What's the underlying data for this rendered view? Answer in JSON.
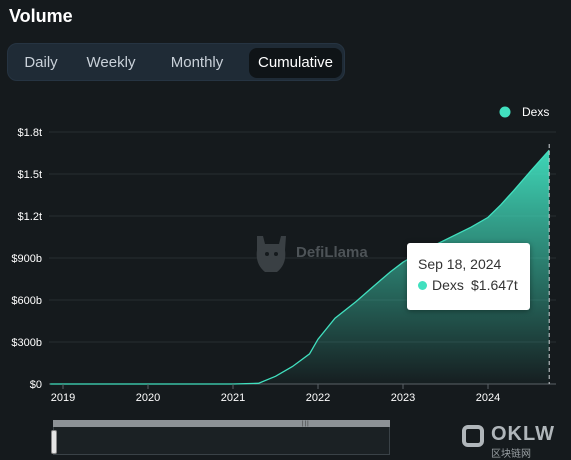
{
  "page_title": "Volume",
  "tabs": [
    {
      "label": "Daily",
      "active": false
    },
    {
      "label": "Weekly",
      "active": false
    },
    {
      "label": "Monthly",
      "active": false
    },
    {
      "label": "Cumulative",
      "active": true
    }
  ],
  "brand_watermark": "DefiLlama",
  "corner_watermark": {
    "text": "OKLW",
    "subtext": "区块链网"
  },
  "tooltip": {
    "date": "Sep 18, 2024",
    "series": "Dexs",
    "value": "$1.647t"
  },
  "colors": {
    "series": "#41e0bf",
    "background": "#151a1d",
    "axis_text": "#ffffff"
  },
  "chart_data": {
    "type": "area",
    "title": "",
    "legend": {
      "entries": [
        "Dexs"
      ],
      "position": "top-right"
    },
    "x_tick_labels": [
      "2019",
      "2020",
      "2021",
      "2022",
      "2023",
      "2024"
    ],
    "y_tick_labels": [
      "$0",
      "$300b",
      "$600b",
      "$900b",
      "$1.2t",
      "$1.5t",
      "$1.8t"
    ],
    "ylim": [
      0,
      1800
    ],
    "y_unit": "billions USD",
    "xlim": [
      2018.85,
      2024.75
    ],
    "grid": "horizontal",
    "series": [
      {
        "name": "Dexs",
        "x": [
          2018.85,
          2020.0,
          2021.0,
          2021.3,
          2021.5,
          2021.7,
          2021.9,
          2022.0,
          2022.2,
          2022.45,
          2022.6,
          2022.85,
          2023.0,
          2023.2,
          2023.4,
          2023.6,
          2023.8,
          2024.0,
          2024.15,
          2024.3,
          2024.5,
          2024.72
        ],
        "y": [
          0,
          0,
          0,
          5,
          55,
          125,
          215,
          320,
          470,
          590,
          670,
          800,
          870,
          940,
          1000,
          1060,
          1120,
          1190,
          1280,
          1380,
          1520,
          1670
        ]
      }
    ],
    "crosshair_x": 2024.72
  }
}
